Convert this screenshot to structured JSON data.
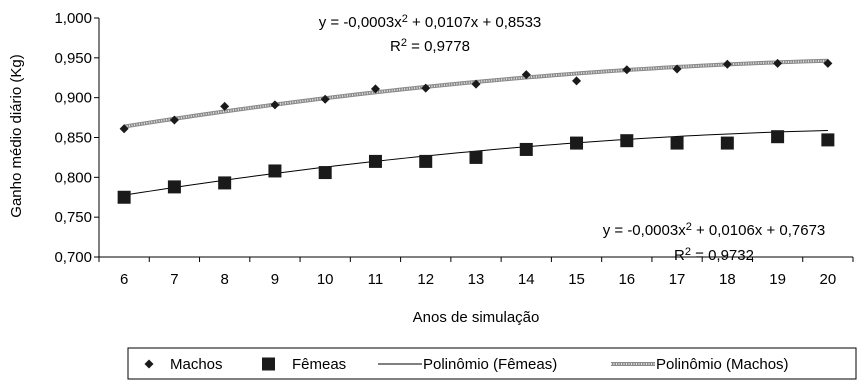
{
  "chart_data": {
    "type": "scatter",
    "xlabel": "Anos de simulação",
    "ylabel": "Ganho médio diário (Kg)",
    "x": [
      6,
      7,
      8,
      9,
      10,
      11,
      12,
      13,
      14,
      15,
      16,
      17,
      18,
      19,
      20
    ],
    "xlim": [
      5.5,
      20.5
    ],
    "ylim": [
      0.7,
      1.0
    ],
    "yticks": [
      0.7,
      0.75,
      0.8,
      0.85,
      0.9,
      0.95,
      1.0
    ],
    "ytick_labels": [
      "0,700",
      "0,750",
      "0,800",
      "0,850",
      "0,900",
      "0,950",
      "1,000"
    ],
    "xtick_labels": [
      "6",
      "7",
      "8",
      "9",
      "10",
      "11",
      "12",
      "13",
      "14",
      "15",
      "16",
      "17",
      "18",
      "19",
      "20"
    ],
    "series": [
      {
        "name": "Machos",
        "marker": "diamond",
        "color": "#1a1a1a",
        "values": [
          0.861,
          0.872,
          0.889,
          0.891,
          0.898,
          0.911,
          0.912,
          0.917,
          0.929,
          0.921,
          0.935,
          0.936,
          0.942,
          0.943,
          0.943
        ]
      },
      {
        "name": "Fêmeas",
        "marker": "square",
        "color": "#1a1a1a",
        "values": [
          0.775,
          0.788,
          0.793,
          0.808,
          0.806,
          0.82,
          0.82,
          0.825,
          0.835,
          0.843,
          0.846,
          0.843,
          0.843,
          0.851,
          0.847
        ]
      }
    ],
    "trendlines": [
      {
        "name": "Polinômio (Fêmeas)",
        "style": "solid",
        "color": "#000000",
        "coefficients": [
          -0.0003,
          0.0106,
          0.7673
        ],
        "equation": "y = -0,0003x² + 0,0106x + 0,7673",
        "r2": "R² = 0,9732"
      },
      {
        "name": "Polinômio (Machos)",
        "style": "textured",
        "color": "#8a8a8a",
        "coefficients": [
          -0.0003,
          0.0107,
          0.8533
        ],
        "equation": "y = -0,0003x² + 0,0107x + 0,8533",
        "r2": "R² = 0,9778"
      }
    ],
    "grid": false,
    "legend_position": "bottom"
  }
}
